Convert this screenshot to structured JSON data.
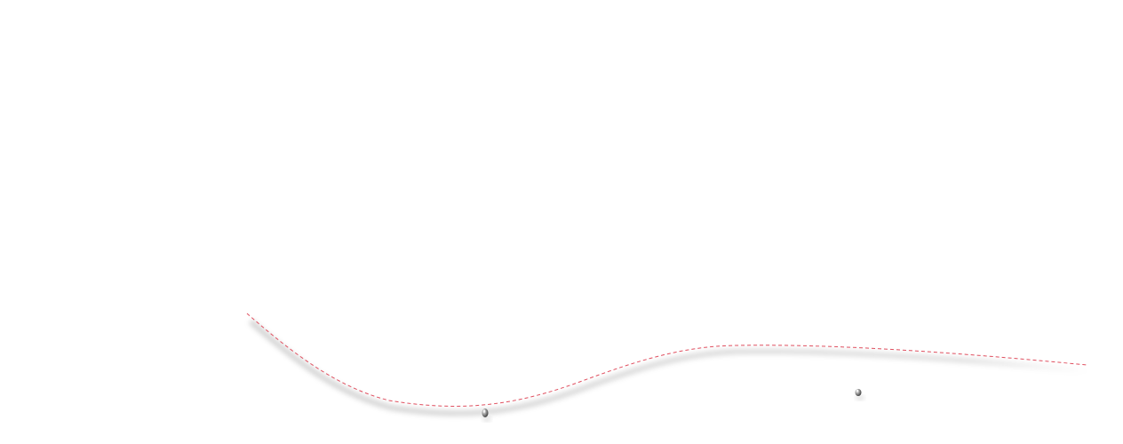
{
  "scene": {
    "background": "#ffffff",
    "path_color": "#e05060",
    "path_style": "dashed",
    "shadow_color": "#000000",
    "marker_color": "#3a3a3a",
    "marker_highlight": "#f2f2f2",
    "objects": [
      {
        "name": "dashed-trajectory-path",
        "kind": "curve"
      },
      {
        "name": "small-metal-bead-left",
        "kind": "marker"
      },
      {
        "name": "small-metal-bead-right",
        "kind": "marker"
      }
    ]
  }
}
